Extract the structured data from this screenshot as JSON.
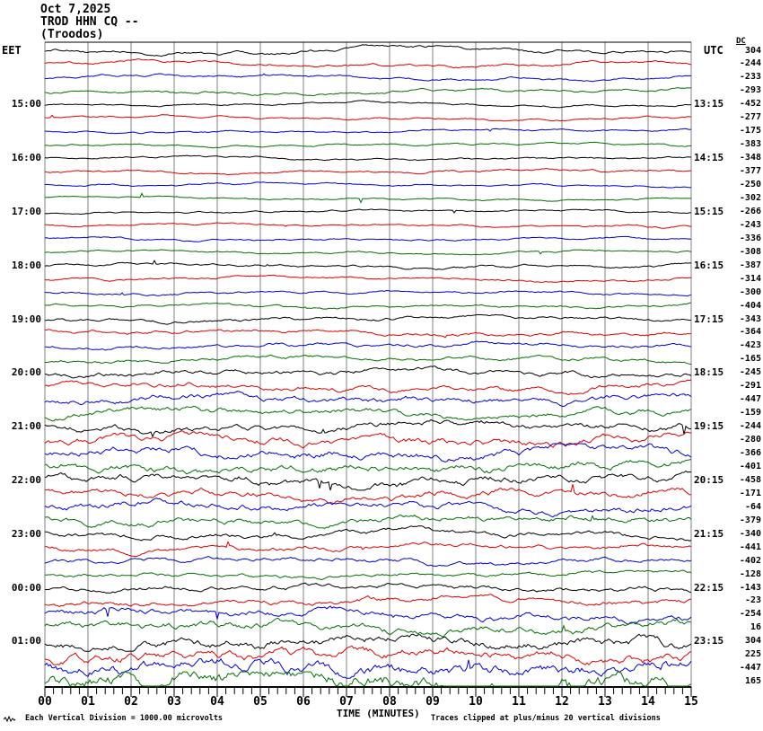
{
  "title": {
    "date": "Oct 7,2025",
    "station": "TROD HHN CQ --",
    "location": "(Troodos)"
  },
  "axes": {
    "left_header": "EET",
    "right_header": "UTC",
    "dc_header": "DC",
    "x_title": "TIME (MINUTES)",
    "x_ticks": [
      "00",
      "01",
      "02",
      "03",
      "04",
      "05",
      "06",
      "07",
      "08",
      "09",
      "10",
      "11",
      "12",
      "13",
      "14",
      "15"
    ]
  },
  "footer": {
    "left": "Each Vertical Division = 1000.00 microvolts",
    "right": "Traces clipped at plus/minus 20 vertical divisions"
  },
  "chart_data": {
    "type": "line",
    "title": "TROD HHN CQ -- (Troodos) helicorder, Oct 7,2025",
    "xlabel": "TIME (MINUTES)",
    "x_range_minutes": [
      0,
      15
    ],
    "minutes_per_row": 15,
    "grid": true,
    "grid_color": "#808080",
    "colors": {
      "black": "#000000",
      "red": "#dd0000",
      "blue": "#0000cc",
      "green": "#007000"
    },
    "rows": [
      {
        "color": "black",
        "left": "",
        "right": "",
        "dc": 304,
        "amp": 3.0,
        "rough": 0.35,
        "seed": 37
      },
      {
        "color": "red",
        "left": "",
        "right": "",
        "dc": -244,
        "amp": 2.5,
        "rough": 0.35,
        "seed": 74
      },
      {
        "color": "blue",
        "left": "",
        "right": "",
        "dc": -233,
        "amp": 2.2,
        "rough": 0.35,
        "seed": 111
      },
      {
        "color": "green",
        "left": "",
        "right": "",
        "dc": -293,
        "amp": 2.8,
        "rough": 0.3,
        "seed": 148
      },
      {
        "color": "black",
        "left": "15:00",
        "right": "13:15",
        "dc": -452,
        "amp": 1.8,
        "rough": 0.35,
        "seed": 185
      },
      {
        "color": "red",
        "left": "",
        "right": "",
        "dc": -277,
        "amp": 1.7,
        "rough": 0.4,
        "seed": 222
      },
      {
        "color": "blue",
        "left": "",
        "right": "",
        "dc": -175,
        "amp": 1.5,
        "rough": 0.4,
        "seed": 259
      },
      {
        "color": "green",
        "left": "",
        "right": "",
        "dc": -383,
        "amp": 1.6,
        "rough": 0.35,
        "seed": 296
      },
      {
        "color": "black",
        "left": "16:00",
        "right": "14:15",
        "dc": -348,
        "amp": 1.6,
        "rough": 0.4,
        "seed": 333
      },
      {
        "color": "red",
        "left": "",
        "right": "",
        "dc": -377,
        "amp": 1.7,
        "rough": 0.45,
        "seed": 370
      },
      {
        "color": "blue",
        "left": "",
        "right": "",
        "dc": -250,
        "amp": 1.5,
        "rough": 0.4,
        "seed": 407
      },
      {
        "color": "green",
        "left": "",
        "right": "",
        "dc": -302,
        "amp": 1.5,
        "rough": 0.35,
        "seed": 444
      },
      {
        "color": "black",
        "left": "17:00",
        "right": "15:15",
        "dc": -266,
        "amp": 1.5,
        "rough": 0.4,
        "seed": 481
      },
      {
        "color": "red",
        "left": "",
        "right": "",
        "dc": -243,
        "amp": 1.6,
        "rough": 0.4,
        "seed": 518
      },
      {
        "color": "blue",
        "left": "",
        "right": "",
        "dc": -336,
        "amp": 1.5,
        "rough": 0.45,
        "seed": 555
      },
      {
        "color": "green",
        "left": "",
        "right": "",
        "dc": -308,
        "amp": 1.6,
        "rough": 0.4,
        "seed": 592
      },
      {
        "color": "black",
        "left": "18:00",
        "right": "16:15",
        "dc": -387,
        "amp": 1.8,
        "rough": 0.45,
        "seed": 629
      },
      {
        "color": "red",
        "left": "",
        "right": "",
        "dc": -314,
        "amp": 1.8,
        "rough": 0.45,
        "seed": 666
      },
      {
        "color": "blue",
        "left": "",
        "right": "",
        "dc": -300,
        "amp": 1.7,
        "rough": 0.45,
        "seed": 703
      },
      {
        "color": "green",
        "left": "",
        "right": "",
        "dc": -404,
        "amp": 1.8,
        "rough": 0.45,
        "seed": 740
      },
      {
        "color": "black",
        "left": "19:00",
        "right": "17:15",
        "dc": -343,
        "amp": 2.2,
        "rough": 0.5,
        "seed": 777
      },
      {
        "color": "red",
        "left": "",
        "right": "",
        "dc": -364,
        "amp": 2.2,
        "rough": 0.5,
        "seed": 814
      },
      {
        "color": "blue",
        "left": "",
        "right": "",
        "dc": -423,
        "amp": 2.4,
        "rough": 0.5,
        "seed": 851
      },
      {
        "color": "green",
        "left": "",
        "right": "",
        "dc": -165,
        "amp": 2.4,
        "rough": 0.5,
        "seed": 888
      },
      {
        "color": "black",
        "left": "20:00",
        "right": "18:15",
        "dc": -245,
        "amp": 3.0,
        "rough": 0.55,
        "seed": 925
      },
      {
        "color": "red",
        "left": "",
        "right": "",
        "dc": -291,
        "amp": 3.2,
        "rough": 0.55,
        "seed": 962
      },
      {
        "color": "blue",
        "left": "",
        "right": "",
        "dc": -447,
        "amp": 3.5,
        "rough": 0.6,
        "seed": 999
      },
      {
        "color": "green",
        "left": "",
        "right": "",
        "dc": -159,
        "amp": 3.5,
        "rough": 0.6,
        "seed": 1036
      },
      {
        "color": "black",
        "left": "21:00",
        "right": "19:15",
        "dc": -244,
        "amp": 3.8,
        "rough": 0.6,
        "seed": 1073
      },
      {
        "color": "red",
        "left": "",
        "right": "",
        "dc": -280,
        "amp": 3.8,
        "rough": 0.65,
        "seed": 1110
      },
      {
        "color": "blue",
        "left": "",
        "right": "",
        "dc": -366,
        "amp": 4.0,
        "rough": 0.65,
        "seed": 1147
      },
      {
        "color": "green",
        "left": "",
        "right": "",
        "dc": -401,
        "amp": 4.2,
        "rough": 0.65,
        "seed": 1184
      },
      {
        "color": "black",
        "left": "22:00",
        "right": "20:15",
        "dc": -458,
        "amp": 4.2,
        "rough": 0.6,
        "seed": 1221
      },
      {
        "color": "red",
        "left": "",
        "right": "",
        "dc": -171,
        "amp": 4.0,
        "rough": 0.6,
        "seed": 1258
      },
      {
        "color": "blue",
        "left": "",
        "right": "",
        "dc": -64,
        "amp": 3.8,
        "rough": 0.6,
        "seed": 1295
      },
      {
        "color": "green",
        "left": "",
        "right": "",
        "dc": -379,
        "amp": 3.5,
        "rough": 0.6,
        "seed": 1332
      },
      {
        "color": "black",
        "left": "23:00",
        "right": "21:15",
        "dc": -340,
        "amp": 3.0,
        "rough": 0.55,
        "seed": 1369
      },
      {
        "color": "red",
        "left": "",
        "right": "",
        "dc": -441,
        "amp": 2.8,
        "rough": 0.55,
        "seed": 1406
      },
      {
        "color": "blue",
        "left": "",
        "right": "",
        "dc": -402,
        "amp": 2.6,
        "rough": 0.55,
        "seed": 1443
      },
      {
        "color": "green",
        "left": "",
        "right": "",
        "dc": -128,
        "amp": 2.6,
        "rough": 0.5,
        "seed": 1480
      },
      {
        "color": "black",
        "left": "00:00",
        "right": "22:15",
        "dc": -143,
        "amp": 3.0,
        "rough": 0.55,
        "seed": 1517
      },
      {
        "color": "red",
        "left": "",
        "right": "",
        "dc": -23,
        "amp": 3.2,
        "rough": 0.6,
        "seed": 1554
      },
      {
        "color": "blue",
        "left": "",
        "right": "",
        "dc": -254,
        "amp": 3.4,
        "rough": 0.65,
        "seed": 1591
      },
      {
        "color": "green",
        "left": "",
        "right": "",
        "dc": 16,
        "amp": 3.6,
        "rough": 0.75,
        "seed": 1628
      },
      {
        "color": "black",
        "left": "01:00",
        "right": "23:15",
        "dc": 304,
        "amp": 4.4,
        "rough": 0.7,
        "seed": 1665
      },
      {
        "color": "red",
        "left": "",
        "right": "",
        "dc": 225,
        "amp": 4.4,
        "rough": 0.75,
        "seed": 1702
      },
      {
        "color": "blue",
        "left": "",
        "right": "",
        "dc": -447,
        "amp": 4.4,
        "rough": 0.95,
        "seed": 1739
      },
      {
        "color": "green",
        "left": "",
        "right": "",
        "dc": 165,
        "amp": 5.0,
        "rough": 1.15,
        "seed": 1776
      }
    ]
  }
}
